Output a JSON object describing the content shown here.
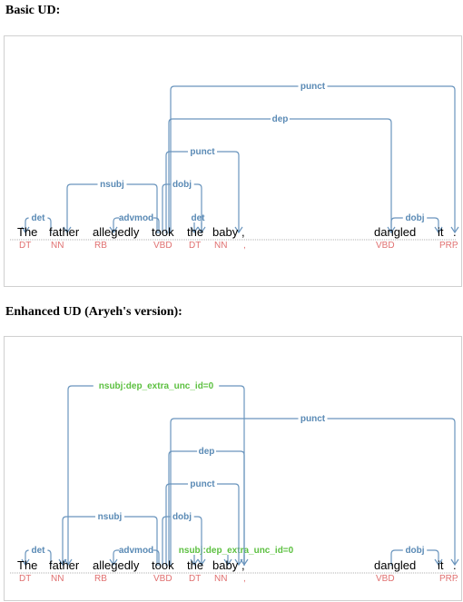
{
  "basic": {
    "heading": "Basic UD:",
    "tokens": [
      {
        "word": "The",
        "tag": "DT"
      },
      {
        "word": "father",
        "tag": "NN"
      },
      {
        "word": "allegedly",
        "tag": "RB"
      },
      {
        "word": "took",
        "tag": "VBD"
      },
      {
        "word": "the",
        "tag": "DT"
      },
      {
        "word": "baby",
        "tag": "NN"
      },
      {
        "word": ",",
        "tag": ","
      },
      {
        "word": "dangled",
        "tag": "VBD"
      },
      {
        "word": "it",
        "tag": "PRP"
      },
      {
        "word": ".",
        "tag": "."
      }
    ],
    "arcs": [
      {
        "from": 1,
        "to": 0,
        "label": "det",
        "color": "#5a8ab5"
      },
      {
        "from": 3,
        "to": 2,
        "label": "advmod",
        "color": "#5a8ab5"
      },
      {
        "from": 5,
        "to": 4,
        "label": "det",
        "color": "#5a8ab5"
      },
      {
        "from": 7,
        "to": 8,
        "label": "dobj",
        "color": "#5a8ab5"
      },
      {
        "from": 3,
        "to": 1,
        "label": "nsubj",
        "color": "#5a8ab5"
      },
      {
        "from": 3,
        "to": 5,
        "label": "dobj",
        "color": "#5a8ab5"
      },
      {
        "from": 3,
        "to": 6,
        "label": "punct",
        "color": "#5a8ab5"
      },
      {
        "from": 3,
        "to": 7,
        "label": "dep",
        "color": "#5a8ab5"
      },
      {
        "from": 3,
        "to": 9,
        "label": "punct",
        "color": "#5a8ab5"
      }
    ]
  },
  "enhanced": {
    "heading": "Enhanced UD (Aryeh's version):",
    "tokens": [
      {
        "word": "The",
        "tag": "DT"
      },
      {
        "word": "father",
        "tag": "NN"
      },
      {
        "word": "allegedly",
        "tag": "RB"
      },
      {
        "word": "took",
        "tag": "VBD"
      },
      {
        "word": "the",
        "tag": "DT"
      },
      {
        "word": "baby",
        "tag": "NN"
      },
      {
        "word": ",",
        "tag": ","
      },
      {
        "word": "dangled",
        "tag": "VBD"
      },
      {
        "word": "it",
        "tag": "PRP"
      },
      {
        "word": ".",
        "tag": "."
      }
    ],
    "arcs": [
      {
        "from": 1,
        "to": 0,
        "label": "det",
        "color": "#5a8ab5"
      },
      {
        "from": 3,
        "to": 2,
        "label": "advmod",
        "color": "#5a8ab5"
      },
      {
        "from": 5,
        "to": 4,
        "label": "det",
        "color": "#5a8ab5"
      },
      {
        "from": 7,
        "to": 5,
        "label": "nsubj:dep_extra_unc_id=0",
        "color": "#5cc040"
      },
      {
        "from": 7,
        "to": 8,
        "label": "dobj",
        "color": "#5a8ab5"
      },
      {
        "from": 3,
        "to": 1,
        "label": "nsubj",
        "color": "#5a8ab5"
      },
      {
        "from": 3,
        "to": 5,
        "label": "dobj",
        "color": "#5a8ab5"
      },
      {
        "from": 3,
        "to": 6,
        "label": "punct",
        "color": "#5a8ab5"
      },
      {
        "from": 3,
        "to": 7,
        "label": "dep",
        "color": "#5a8ab5"
      },
      {
        "from": 3,
        "to": 9,
        "label": "punct",
        "color": "#5a8ab5"
      },
      {
        "from": 7,
        "to": 1,
        "label": "nsubj:dep_extra_unc_id=0",
        "color": "#5cc040"
      }
    ]
  }
}
